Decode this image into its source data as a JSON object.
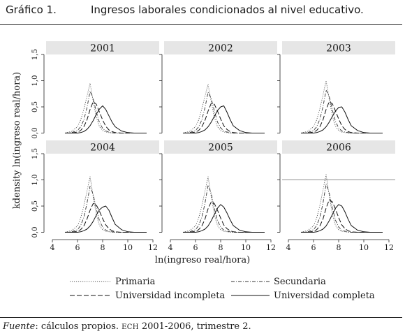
{
  "figure": {
    "number": "Gráfico 1.",
    "title": "Ingresos laborales condicionados al nivel educativo.",
    "source_label": "Fuente",
    "source_text": ": cálculos propios. ",
    "source_sc": "ECH",
    "source_tail": " 2001-2006, trimestre 2."
  },
  "chart_data": {
    "type": "line",
    "title": "",
    "xlabel": "ln(ingreso real/hora)",
    "ylabel": "kdensity ln(ingreso real/hora)",
    "xlim": [
      3.5,
      12.5
    ],
    "ylim": [
      -0.1,
      1.5
    ],
    "xticks": [
      4,
      6,
      8,
      10,
      12
    ],
    "yticks": [
      0.0,
      0.5,
      1.0,
      1.5
    ],
    "ytick_labels": [
      "0,0",
      "0,5",
      "1,0",
      "1,5"
    ],
    "grid": false,
    "legend_position": "bottom",
    "x": [
      5.0,
      5.5,
      6.0,
      6.25,
      6.5,
      6.75,
      7.0,
      7.25,
      7.5,
      7.75,
      8.0,
      8.25,
      8.5,
      8.75,
      9.0,
      9.5,
      10.0,
      10.5,
      11.0,
      11.5
    ],
    "series_styles": [
      {
        "name": "Primaria",
        "color": "#555555",
        "dash": "1.2,1.8",
        "width": 0.9
      },
      {
        "name": "Secundaria",
        "color": "#333333",
        "dash": "5,2,1,2",
        "width": 0.9
      },
      {
        "name": "Universidad incompleta",
        "color": "#111111",
        "dash": "7,3",
        "width": 1.0
      },
      {
        "name": "Universidad completa",
        "color": "#111111",
        "dash": "",
        "width": 1.0
      }
    ],
    "legend_columns": [
      [
        "Primaria",
        "Universidad incompleta"
      ],
      [
        "Secundaria",
        "Universidad completa"
      ]
    ],
    "panels": [
      {
        "label": "2001",
        "series": [
          {
            "name": "Primaria",
            "values": [
              0.0,
              0.03,
              0.12,
              0.25,
              0.45,
              0.7,
              0.95,
              0.6,
              0.3,
              0.12,
              0.05,
              0.02,
              0.01,
              0.0,
              0.0,
              0.0,
              0.0,
              0.0,
              0.0,
              0.0
            ]
          },
          {
            "name": "Secundaria",
            "values": [
              0.0,
              0.01,
              0.05,
              0.12,
              0.25,
              0.48,
              0.8,
              0.65,
              0.4,
              0.2,
              0.09,
              0.04,
              0.02,
              0.01,
              0.0,
              0.0,
              0.0,
              0.0,
              0.0,
              0.0
            ]
          },
          {
            "name": "Universidad incompleta",
            "values": [
              0.0,
              0.0,
              0.02,
              0.05,
              0.12,
              0.25,
              0.45,
              0.6,
              0.55,
              0.4,
              0.25,
              0.13,
              0.06,
              0.03,
              0.01,
              0.0,
              0.0,
              0.0,
              0.0,
              0.0
            ]
          },
          {
            "name": "Universidad completa",
            "values": [
              0.0,
              0.0,
              0.0,
              0.01,
              0.03,
              0.07,
              0.14,
              0.24,
              0.36,
              0.46,
              0.52,
              0.45,
              0.33,
              0.21,
              0.12,
              0.04,
              0.01,
              0.0,
              0.0,
              0.0
            ]
          }
        ]
      },
      {
        "label": "2002",
        "series": [
          {
            "name": "Primaria",
            "values": [
              0.0,
              0.03,
              0.12,
              0.25,
              0.46,
              0.7,
              0.93,
              0.6,
              0.3,
              0.12,
              0.05,
              0.02,
              0.01,
              0.0,
              0.0,
              0.0,
              0.0,
              0.0,
              0.0,
              0.0
            ]
          },
          {
            "name": "Secundaria",
            "values": [
              0.0,
              0.01,
              0.05,
              0.12,
              0.25,
              0.48,
              0.78,
              0.66,
              0.42,
              0.21,
              0.1,
              0.04,
              0.02,
              0.01,
              0.0,
              0.0,
              0.0,
              0.0,
              0.0,
              0.0
            ]
          },
          {
            "name": "Universidad incompleta",
            "values": [
              0.0,
              0.0,
              0.02,
              0.05,
              0.12,
              0.24,
              0.42,
              0.57,
              0.55,
              0.42,
              0.27,
              0.14,
              0.07,
              0.03,
              0.01,
              0.0,
              0.0,
              0.0,
              0.0,
              0.0
            ]
          },
          {
            "name": "Universidad completa",
            "values": [
              0.0,
              0.0,
              0.0,
              0.01,
              0.03,
              0.06,
              0.12,
              0.21,
              0.32,
              0.43,
              0.5,
              0.52,
              0.4,
              0.26,
              0.14,
              0.05,
              0.01,
              0.0,
              0.0,
              0.0
            ]
          }
        ]
      },
      {
        "label": "2003",
        "series": [
          {
            "name": "Primaria",
            "values": [
              0.0,
              0.03,
              0.12,
              0.25,
              0.46,
              0.72,
              1.0,
              0.65,
              0.32,
              0.13,
              0.05,
              0.02,
              0.01,
              0.0,
              0.0,
              0.0,
              0.0,
              0.0,
              0.0,
              0.0
            ]
          },
          {
            "name": "Secundaria",
            "values": [
              0.0,
              0.01,
              0.05,
              0.12,
              0.26,
              0.5,
              0.82,
              0.7,
              0.44,
              0.22,
              0.1,
              0.04,
              0.02,
              0.01,
              0.0,
              0.0,
              0.0,
              0.0,
              0.0,
              0.0
            ]
          },
          {
            "name": "Universidad incompleta",
            "values": [
              0.0,
              0.0,
              0.02,
              0.05,
              0.12,
              0.25,
              0.45,
              0.6,
              0.56,
              0.42,
              0.27,
              0.14,
              0.07,
              0.03,
              0.01,
              0.0,
              0.0,
              0.0,
              0.0,
              0.0
            ]
          },
          {
            "name": "Universidad completa",
            "values": [
              0.0,
              0.0,
              0.0,
              0.01,
              0.03,
              0.06,
              0.12,
              0.21,
              0.32,
              0.42,
              0.49,
              0.5,
              0.4,
              0.26,
              0.14,
              0.05,
              0.01,
              0.0,
              0.0,
              0.0
            ]
          }
        ]
      },
      {
        "label": "2004",
        "series": [
          {
            "name": "Primaria",
            "values": [
              0.0,
              0.03,
              0.12,
              0.27,
              0.5,
              0.78,
              1.06,
              0.68,
              0.33,
              0.13,
              0.05,
              0.02,
              0.01,
              0.0,
              0.0,
              0.0,
              0.0,
              0.0,
              0.0,
              0.0
            ]
          },
          {
            "name": "Secundaria",
            "values": [
              0.0,
              0.01,
              0.05,
              0.13,
              0.28,
              0.55,
              0.88,
              0.72,
              0.44,
              0.22,
              0.1,
              0.04,
              0.02,
              0.01,
              0.0,
              0.0,
              0.0,
              0.0,
              0.0,
              0.0
            ]
          },
          {
            "name": "Universidad incompleta",
            "values": [
              0.0,
              0.0,
              0.02,
              0.05,
              0.12,
              0.25,
              0.42,
              0.55,
              0.52,
              0.4,
              0.26,
              0.14,
              0.07,
              0.03,
              0.01,
              0.0,
              0.0,
              0.0,
              0.0,
              0.0
            ]
          },
          {
            "name": "Universidad completa",
            "values": [
              0.0,
              0.0,
              0.0,
              0.01,
              0.03,
              0.06,
              0.12,
              0.21,
              0.33,
              0.43,
              0.48,
              0.5,
              0.42,
              0.28,
              0.15,
              0.05,
              0.01,
              0.0,
              0.0,
              0.0
            ]
          }
        ]
      },
      {
        "label": "2005",
        "series": [
          {
            "name": "Primaria",
            "values": [
              0.0,
              0.03,
              0.12,
              0.27,
              0.5,
              0.78,
              1.06,
              0.68,
              0.33,
              0.13,
              0.05,
              0.02,
              0.01,
              0.0,
              0.0,
              0.0,
              0.0,
              0.0,
              0.0,
              0.0
            ]
          },
          {
            "name": "Secundaria",
            "values": [
              0.0,
              0.01,
              0.05,
              0.13,
              0.28,
              0.55,
              0.9,
              0.74,
              0.45,
              0.22,
              0.1,
              0.04,
              0.02,
              0.01,
              0.0,
              0.0,
              0.0,
              0.0,
              0.0,
              0.0
            ]
          },
          {
            "name": "Universidad incompleta",
            "values": [
              0.0,
              0.0,
              0.02,
              0.05,
              0.12,
              0.25,
              0.45,
              0.58,
              0.55,
              0.42,
              0.27,
              0.14,
              0.07,
              0.03,
              0.01,
              0.0,
              0.0,
              0.0,
              0.0,
              0.0
            ]
          },
          {
            "name": "Universidad completa",
            "values": [
              0.0,
              0.0,
              0.0,
              0.01,
              0.03,
              0.06,
              0.12,
              0.22,
              0.34,
              0.46,
              0.53,
              0.48,
              0.37,
              0.24,
              0.13,
              0.04,
              0.01,
              0.0,
              0.0,
              0.0
            ]
          }
        ]
      },
      {
        "label": "2006",
        "series": [
          {
            "name": "Primaria",
            "values": [
              0.0,
              0.03,
              0.12,
              0.27,
              0.51,
              0.8,
              1.1,
              0.7,
              0.34,
              0.13,
              0.05,
              0.02,
              0.01,
              0.0,
              0.0,
              0.0,
              0.0,
              0.0,
              0.0,
              0.0
            ]
          },
          {
            "name": "Secundaria",
            "values": [
              0.0,
              0.01,
              0.05,
              0.13,
              0.28,
              0.55,
              0.92,
              0.75,
              0.46,
              0.23,
              0.1,
              0.04,
              0.02,
              0.01,
              0.0,
              0.0,
              0.0,
              0.0,
              0.0,
              0.0
            ]
          },
          {
            "name": "Universidad incompleta",
            "values": [
              0.0,
              0.0,
              0.02,
              0.05,
              0.12,
              0.25,
              0.46,
              0.62,
              0.58,
              0.44,
              0.28,
              0.14,
              0.07,
              0.03,
              0.01,
              0.0,
              0.0,
              0.0,
              0.0,
              0.0
            ]
          },
          {
            "name": "Universidad completa",
            "values": [
              0.0,
              0.0,
              0.0,
              0.01,
              0.03,
              0.06,
              0.12,
              0.22,
              0.34,
              0.46,
              0.53,
              0.5,
              0.39,
              0.25,
              0.13,
              0.04,
              0.01,
              0.0,
              0.0,
              0.0
            ]
          }
        ],
        "reference_line": 1.0
      }
    ]
  }
}
